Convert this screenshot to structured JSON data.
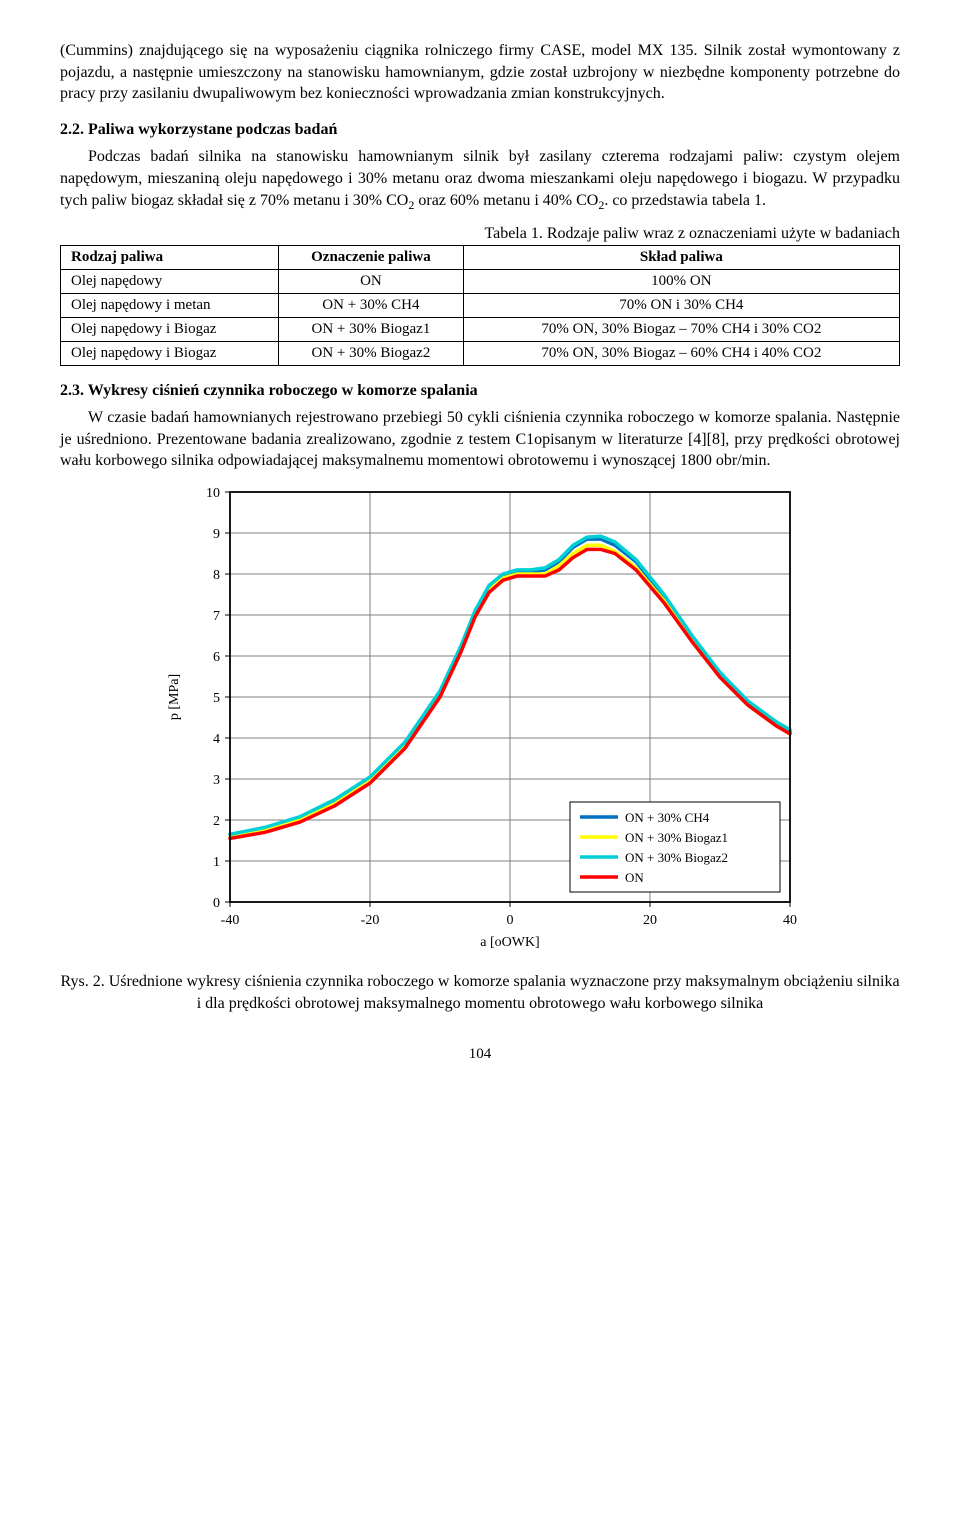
{
  "para1": "(Cummins) znajdującego się na wyposażeniu ciągnika rolniczego firmy CASE, model MX 135. Silnik został wymontowany z pojazdu, a następnie umieszczony na stanowisku hamownianym, gdzie został uzbrojony w niezbędne komponenty potrzebne do pracy przy zasilaniu dwupaliwowym bez konieczności wprowadzania zmian konstrukcyjnych.",
  "sec22_title": "2.2. Paliwa wykorzystane podczas badań",
  "para2a": "Podczas badań silnika na stanowisku hamownianym silnik był zasilany czterema rodzajami paliw: czystym olejem napędowym, mieszaniną oleju napędowego i 30% metanu oraz dwoma mieszankami oleju napędowego i biogazu. W przypadku tych paliw biogaz składał się z 70% metanu i 30% CO",
  "para2b": " oraz 60% metanu i 40% CO",
  "para2c": ". co przedstawia tabela 1.",
  "table_caption": "Tabela 1. Rodzaje paliw wraz z oznaczeniami użyte w badaniach",
  "table": {
    "headers": [
      "Rodzaj paliwa",
      "Oznaczenie paliwa",
      "Skład paliwa"
    ],
    "rows": [
      [
        "Olej napędowy",
        "ON",
        "100% ON"
      ],
      [
        "Olej napędowy i metan",
        "ON + 30% CH4",
        "70% ON i 30% CH4"
      ],
      [
        "Olej napędowy i Biogaz",
        "ON + 30% Biogaz1",
        "70% ON, 30% Biogaz – 70% CH4 i 30% CO2"
      ],
      [
        "Olej napędowy i Biogaz",
        "ON + 30% Biogaz2",
        "70% ON, 30% Biogaz – 60% CH4 i 40% CO2"
      ]
    ]
  },
  "sec23_title": "2.3. Wykresy ciśnień czynnika roboczego w komorze spalania",
  "para3": "W czasie badań hamownianych rejestrowano przebiegi 50 cykli ciśnienia czynnika roboczego w komorze spalania. Następnie je uśredniono. Prezentowane badania zrealizowano, zgodnie z testem C1opisanym w literaturze [4][8], przy prędkości obrotowej wału korbowego silnika odpowiadającej maksymalnemu momentowi obrotowemu i wynoszącej 1800 obr/min.",
  "chart": {
    "type": "line",
    "xlabel": "a [oOWK]",
    "ylabel": "p [MPa]",
    "xlim": [
      -40,
      40
    ],
    "ylim": [
      0,
      10
    ],
    "xtick_step": 20,
    "ytick_step": 1,
    "grid_color": "#7f7f7f",
    "border_color": "#000000",
    "background_color": "#ffffff",
    "line_width": 3.5,
    "axis_fontsize": 14,
    "tick_fontsize": 14,
    "legend_fontsize": 13,
    "legend_pos": "lower-right",
    "series": [
      {
        "name": "ON + 30% CH4",
        "color": "#0070c0",
        "data": [
          [
            -40,
            1.65
          ],
          [
            -35,
            1.8
          ],
          [
            -30,
            2.05
          ],
          [
            -25,
            2.45
          ],
          [
            -20,
            3.0
          ],
          [
            -15,
            3.85
          ],
          [
            -10,
            5.1
          ],
          [
            -7,
            6.2
          ],
          [
            -5,
            7.05
          ],
          [
            -3,
            7.7
          ],
          [
            -1,
            7.95
          ],
          [
            1,
            8.05
          ],
          [
            3,
            8.05
          ],
          [
            5,
            8.1
          ],
          [
            7,
            8.3
          ],
          [
            9,
            8.65
          ],
          [
            11,
            8.85
          ],
          [
            13,
            8.85
          ],
          [
            15,
            8.7
          ],
          [
            18,
            8.3
          ],
          [
            22,
            7.45
          ],
          [
            26,
            6.45
          ],
          [
            30,
            5.55
          ],
          [
            34,
            4.85
          ],
          [
            38,
            4.35
          ],
          [
            40,
            4.15
          ]
        ]
      },
      {
        "name": "ON + 30% Biogaz1",
        "color": "#ffff00",
        "data": [
          [
            -40,
            1.6
          ],
          [
            -35,
            1.75
          ],
          [
            -30,
            2.0
          ],
          [
            -25,
            2.4
          ],
          [
            -20,
            2.95
          ],
          [
            -15,
            3.8
          ],
          [
            -10,
            5.05
          ],
          [
            -7,
            6.15
          ],
          [
            -5,
            7.0
          ],
          [
            -3,
            7.6
          ],
          [
            -1,
            7.9
          ],
          [
            1,
            8.0
          ],
          [
            3,
            8.0
          ],
          [
            5,
            8.0
          ],
          [
            7,
            8.2
          ],
          [
            9,
            8.5
          ],
          [
            11,
            8.7
          ],
          [
            13,
            8.7
          ],
          [
            15,
            8.55
          ],
          [
            18,
            8.15
          ],
          [
            22,
            7.35
          ],
          [
            26,
            6.4
          ],
          [
            30,
            5.5
          ],
          [
            34,
            4.8
          ],
          [
            38,
            4.3
          ],
          [
            40,
            4.1
          ]
        ]
      },
      {
        "name": "ON + 30% Biogaz2",
        "color": "#00d0d6",
        "data": [
          [
            -40,
            1.65
          ],
          [
            -35,
            1.82
          ],
          [
            -30,
            2.08
          ],
          [
            -25,
            2.5
          ],
          [
            -20,
            3.05
          ],
          [
            -15,
            3.9
          ],
          [
            -10,
            5.15
          ],
          [
            -7,
            6.25
          ],
          [
            -5,
            7.1
          ],
          [
            -3,
            7.72
          ],
          [
            -1,
            8.0
          ],
          [
            1,
            8.1
          ],
          [
            3,
            8.1
          ],
          [
            5,
            8.15
          ],
          [
            7,
            8.35
          ],
          [
            9,
            8.7
          ],
          [
            11,
            8.9
          ],
          [
            13,
            8.92
          ],
          [
            15,
            8.78
          ],
          [
            18,
            8.35
          ],
          [
            22,
            7.5
          ],
          [
            26,
            6.5
          ],
          [
            30,
            5.6
          ],
          [
            34,
            4.9
          ],
          [
            38,
            4.4
          ],
          [
            40,
            4.2
          ]
        ]
      },
      {
        "name": "ON",
        "color": "#ff0000",
        "data": [
          [
            -40,
            1.55
          ],
          [
            -35,
            1.7
          ],
          [
            -30,
            1.95
          ],
          [
            -25,
            2.35
          ],
          [
            -20,
            2.9
          ],
          [
            -15,
            3.75
          ],
          [
            -10,
            5.0
          ],
          [
            -7,
            6.1
          ],
          [
            -5,
            6.95
          ],
          [
            -3,
            7.55
          ],
          [
            -1,
            7.85
          ],
          [
            1,
            7.95
          ],
          [
            3,
            7.95
          ],
          [
            5,
            7.95
          ],
          [
            7,
            8.1
          ],
          [
            9,
            8.4
          ],
          [
            11,
            8.6
          ],
          [
            13,
            8.6
          ],
          [
            15,
            8.5
          ],
          [
            18,
            8.1
          ],
          [
            22,
            7.3
          ],
          [
            26,
            6.35
          ],
          [
            30,
            5.48
          ],
          [
            34,
            4.8
          ],
          [
            38,
            4.3
          ],
          [
            40,
            4.1
          ]
        ]
      }
    ]
  },
  "fig_caption": "Rys. 2. Uśrednione wykresy ciśnienia czynnika roboczego w komorze spalania wyznaczone przy maksymalnym obciążeniu silnika i dla prędkości obrotowej maksymalnego momentu obrotowego wału korbowego silnika",
  "page_num": "104"
}
